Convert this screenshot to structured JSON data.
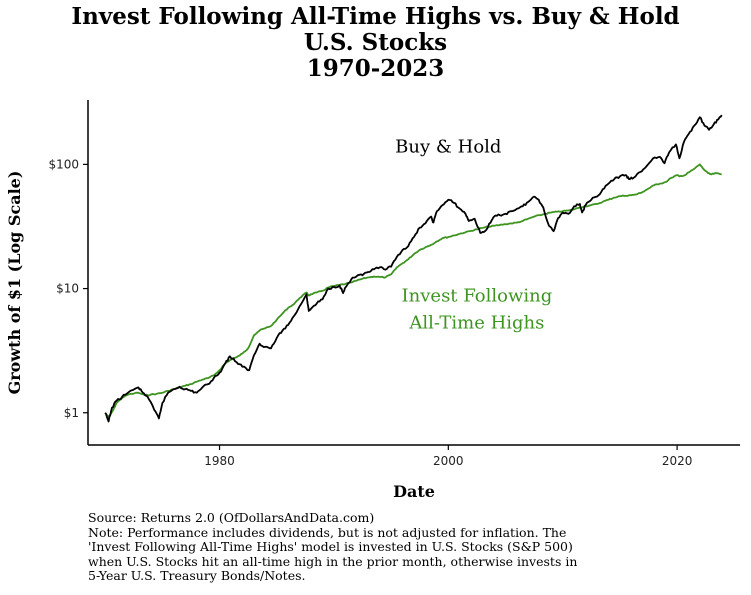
{
  "chart_data": {
    "type": "line",
    "title": [
      "Invest Following All-Time Highs vs. Buy & Hold",
      "U.S. Stocks",
      "1970-2023"
    ],
    "xlabel": "Date",
    "ylabel": "Growth of $1 (Log Scale)",
    "xlim": [
      1968.5,
      2025.5
    ],
    "ylim": [
      0.55,
      330
    ],
    "y_scale": "log",
    "x_ticks": [
      1980,
      2000,
      2020
    ],
    "x_tick_labels": [
      "1980",
      "2000",
      "2020"
    ],
    "y_ticks": [
      1,
      10,
      100
    ],
    "y_tick_labels": [
      "$1",
      "$10",
      "$100"
    ],
    "grid": false,
    "series": [
      {
        "name": "Buy & Hold",
        "color": "#000000",
        "points": [
          [
            1970.0,
            1.0
          ],
          [
            1970.3,
            0.85
          ],
          [
            1970.6,
            1.1
          ],
          [
            1971.0,
            1.25
          ],
          [
            1971.5,
            1.35
          ],
          [
            1972.0,
            1.45
          ],
          [
            1972.9,
            1.6
          ],
          [
            1973.3,
            1.45
          ],
          [
            1973.7,
            1.35
          ],
          [
            1974.3,
            1.05
          ],
          [
            1974.7,
            0.9
          ],
          [
            1975.0,
            1.2
          ],
          [
            1975.5,
            1.45
          ],
          [
            1976.0,
            1.55
          ],
          [
            1976.5,
            1.62
          ],
          [
            1977.0,
            1.55
          ],
          [
            1977.5,
            1.5
          ],
          [
            1978.0,
            1.45
          ],
          [
            1978.5,
            1.6
          ],
          [
            1979.0,
            1.7
          ],
          [
            1979.5,
            1.9
          ],
          [
            1980.0,
            2.1
          ],
          [
            1980.5,
            2.5
          ],
          [
            1980.9,
            2.85
          ],
          [
            1981.5,
            2.55
          ],
          [
            1982.0,
            2.35
          ],
          [
            1982.6,
            2.2
          ],
          [
            1983.0,
            2.9
          ],
          [
            1983.5,
            3.6
          ],
          [
            1984.0,
            3.4
          ],
          [
            1984.5,
            3.3
          ],
          [
            1985.0,
            4.0
          ],
          [
            1985.5,
            4.6
          ],
          [
            1986.0,
            5.1
          ],
          [
            1986.5,
            6.0
          ],
          [
            1987.0,
            7.2
          ],
          [
            1987.6,
            9.0
          ],
          [
            1987.8,
            6.6
          ],
          [
            1988.0,
            6.9
          ],
          [
            1988.5,
            7.6
          ],
          [
            1989.0,
            8.2
          ],
          [
            1989.5,
            10.0
          ],
          [
            1990.0,
            10.3
          ],
          [
            1990.5,
            10.6
          ],
          [
            1990.8,
            9.2
          ],
          [
            1991.0,
            10.2
          ],
          [
            1991.5,
            11.8
          ],
          [
            1992.0,
            12.6
          ],
          [
            1992.5,
            12.8
          ],
          [
            1993.0,
            13.6
          ],
          [
            1993.5,
            14.3
          ],
          [
            1994.0,
            14.8
          ],
          [
            1994.5,
            14.2
          ],
          [
            1995.0,
            15.0
          ],
          [
            1995.5,
            18.0
          ],
          [
            1996.0,
            20.5
          ],
          [
            1996.5,
            22.0
          ],
          [
            1997.0,
            26.0
          ],
          [
            1997.5,
            31.0
          ],
          [
            1998.0,
            33.5
          ],
          [
            1998.5,
            38.0
          ],
          [
            1998.7,
            34.0
          ],
          [
            1999.0,
            42.0
          ],
          [
            1999.5,
            47.0
          ],
          [
            2000.0,
            52.0
          ],
          [
            2000.5,
            49.0
          ],
          [
            2001.0,
            44.0
          ],
          [
            2001.5,
            40.0
          ],
          [
            2001.8,
            35.0
          ],
          [
            2002.3,
            36.5
          ],
          [
            2002.8,
            28.0
          ],
          [
            2003.2,
            29.0
          ],
          [
            2003.7,
            34.0
          ],
          [
            2004.0,
            38.0
          ],
          [
            2004.5,
            39.0
          ],
          [
            2005.0,
            40.0
          ],
          [
            2005.5,
            42.0
          ],
          [
            2006.0,
            44.0
          ],
          [
            2006.5,
            46.0
          ],
          [
            2007.0,
            50.0
          ],
          [
            2007.5,
            55.0
          ],
          [
            2007.9,
            52.0
          ],
          [
            2008.3,
            45.0
          ],
          [
            2008.8,
            32.0
          ],
          [
            2009.2,
            29.0
          ],
          [
            2009.6,
            37.0
          ],
          [
            2010.0,
            41.0
          ],
          [
            2010.5,
            40.0
          ],
          [
            2011.0,
            46.0
          ],
          [
            2011.5,
            48.0
          ],
          [
            2011.7,
            41.0
          ],
          [
            2012.0,
            47.0
          ],
          [
            2012.5,
            52.0
          ],
          [
            2013.0,
            55.0
          ],
          [
            2013.5,
            63.0
          ],
          [
            2014.0,
            70.0
          ],
          [
            2014.5,
            76.0
          ],
          [
            2015.0,
            80.0
          ],
          [
            2015.5,
            82.0
          ],
          [
            2015.8,
            76.0
          ],
          [
            2016.2,
            78.0
          ],
          [
            2016.8,
            87.0
          ],
          [
            2017.3,
            96.0
          ],
          [
            2017.9,
            112.0
          ],
          [
            2018.5,
            115.0
          ],
          [
            2018.9,
            102.0
          ],
          [
            2019.3,
            125.0
          ],
          [
            2019.9,
            145.0
          ],
          [
            2020.2,
            112.0
          ],
          [
            2020.6,
            152.0
          ],
          [
            2021.0,
            175.0
          ],
          [
            2021.5,
            205.0
          ],
          [
            2021.99,
            240.0
          ],
          [
            2022.4,
            205.0
          ],
          [
            2022.8,
            190.0
          ],
          [
            2023.2,
            210.0
          ],
          [
            2023.6,
            230.0
          ],
          [
            2023.9,
            250.0
          ]
        ]
      },
      {
        "name": "Invest Following All-Time Highs",
        "color": "#3e9420",
        "points": [
          [
            1970.0,
            1.0
          ],
          [
            1970.3,
            0.92
          ],
          [
            1970.7,
            1.05
          ],
          [
            1971.0,
            1.2
          ],
          [
            1971.5,
            1.32
          ],
          [
            1972.0,
            1.4
          ],
          [
            1972.9,
            1.45
          ],
          [
            1973.5,
            1.38
          ],
          [
            1974.0,
            1.4
          ],
          [
            1974.5,
            1.42
          ],
          [
            1975.0,
            1.45
          ],
          [
            1975.5,
            1.5
          ],
          [
            1976.0,
            1.55
          ],
          [
            1976.5,
            1.6
          ],
          [
            1977.0,
            1.65
          ],
          [
            1977.5,
            1.7
          ],
          [
            1978.0,
            1.78
          ],
          [
            1978.5,
            1.85
          ],
          [
            1979.0,
            1.9
          ],
          [
            1979.5,
            2.0
          ],
          [
            1980.0,
            2.2
          ],
          [
            1980.5,
            2.5
          ],
          [
            1980.9,
            2.65
          ],
          [
            1981.5,
            2.8
          ],
          [
            1982.0,
            3.0
          ],
          [
            1982.5,
            3.3
          ],
          [
            1983.0,
            4.2
          ],
          [
            1983.5,
            4.6
          ],
          [
            1984.0,
            4.8
          ],
          [
            1984.5,
            5.0
          ],
          [
            1985.0,
            5.6
          ],
          [
            1985.5,
            6.3
          ],
          [
            1986.0,
            7.0
          ],
          [
            1986.5,
            7.5
          ],
          [
            1987.0,
            8.4
          ],
          [
            1987.6,
            9.3
          ],
          [
            1987.8,
            8.8
          ],
          [
            1988.0,
            9.0
          ],
          [
            1988.5,
            9.3
          ],
          [
            1989.0,
            9.6
          ],
          [
            1989.5,
            10.2
          ],
          [
            1990.0,
            10.5
          ],
          [
            1990.5,
            10.7
          ],
          [
            1991.0,
            10.9
          ],
          [
            1991.5,
            11.2
          ],
          [
            1992.0,
            11.6
          ],
          [
            1992.5,
            12.0
          ],
          [
            1993.0,
            12.3
          ],
          [
            1993.5,
            12.5
          ],
          [
            1994.0,
            12.4
          ],
          [
            1994.5,
            12.3
          ],
          [
            1995.0,
            13.0
          ],
          [
            1995.5,
            14.8
          ],
          [
            1996.0,
            16.0
          ],
          [
            1996.5,
            17.2
          ],
          [
            1997.0,
            19.0
          ],
          [
            1997.5,
            20.5
          ],
          [
            1998.0,
            21.5
          ],
          [
            1998.5,
            22.5
          ],
          [
            1999.0,
            24.0
          ],
          [
            1999.5,
            25.5
          ],
          [
            2000.0,
            26.0
          ],
          [
            2000.5,
            26.8
          ],
          [
            2001.0,
            27.6
          ],
          [
            2001.5,
            28.4
          ],
          [
            2002.0,
            29.2
          ],
          [
            2002.5,
            30.0
          ],
          [
            2003.0,
            30.8
          ],
          [
            2003.5,
            31.5
          ],
          [
            2004.0,
            32.0
          ],
          [
            2004.5,
            32.5
          ],
          [
            2005.0,
            33.0
          ],
          [
            2005.5,
            33.5
          ],
          [
            2006.0,
            34.0
          ],
          [
            2006.5,
            35.0
          ],
          [
            2007.0,
            36.5
          ],
          [
            2007.5,
            38.0
          ],
          [
            2008.0,
            39.0
          ],
          [
            2008.5,
            40.0
          ],
          [
            2009.0,
            41.0
          ],
          [
            2009.5,
            41.5
          ],
          [
            2010.0,
            42.0
          ],
          [
            2010.5,
            42.5
          ],
          [
            2011.0,
            43.5
          ],
          [
            2011.5,
            45.0
          ],
          [
            2012.0,
            46.0
          ],
          [
            2012.5,
            47.0
          ],
          [
            2013.0,
            48.0
          ],
          [
            2013.5,
            50.0
          ],
          [
            2014.0,
            52.0
          ],
          [
            2014.5,
            54.0
          ],
          [
            2015.0,
            55.5
          ],
          [
            2015.5,
            56.0
          ],
          [
            2016.0,
            56.5
          ],
          [
            2016.5,
            57.5
          ],
          [
            2017.0,
            60.0
          ],
          [
            2017.5,
            64.0
          ],
          [
            2018.0,
            68.0
          ],
          [
            2018.5,
            70.0
          ],
          [
            2019.0,
            72.0
          ],
          [
            2019.5,
            78.0
          ],
          [
            2020.0,
            82.0
          ],
          [
            2020.2,
            80.0
          ],
          [
            2020.7,
            82.0
          ],
          [
            2021.0,
            86.0
          ],
          [
            2021.5,
            92.0
          ],
          [
            2021.99,
            100.0
          ],
          [
            2022.3,
            92.0
          ],
          [
            2022.7,
            85.0
          ],
          [
            2023.0,
            83.0
          ],
          [
            2023.4,
            85.0
          ],
          [
            2023.9,
            83.0
          ]
        ]
      }
    ],
    "annotations": [
      {
        "text": "Buy & Hold",
        "x": 2000.0,
        "y": 125,
        "color": "#000000"
      },
      {
        "text": "Invest Following",
        "x": 2002.5,
        "y": 7.9,
        "color": "#3e9420"
      },
      {
        "text": "All-Time Highs",
        "x": 2002.5,
        "y": 4.75,
        "color": "#3e9420"
      }
    ],
    "notes": [
      "Source:  Returns 2.0 (OfDollarsAndData.com)",
      "Note: Performance includes dividends, but is not adjusted for inflation. The",
      "'Invest Following All-Time Highs' model is invested in U.S. Stocks (S&P 500)",
      "when U.S. Stocks hit an all-time high in the prior month, otherwise invests in",
      "5-Year U.S. Treasury Bonds/Notes."
    ]
  }
}
